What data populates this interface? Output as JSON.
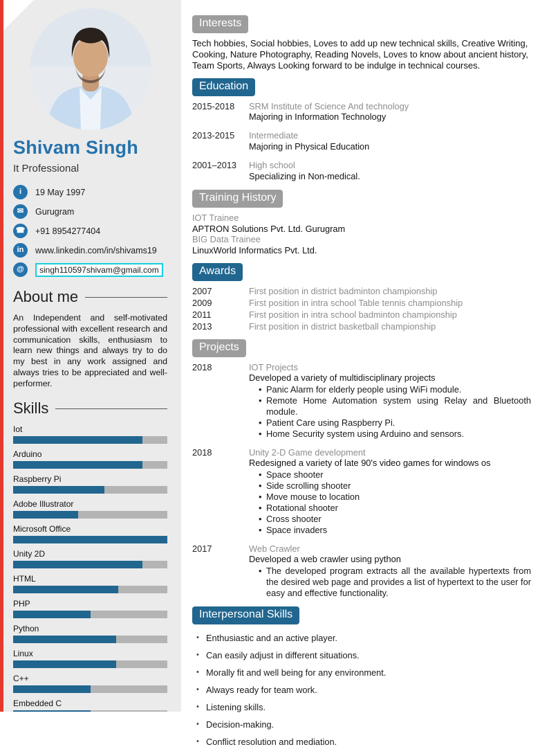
{
  "colors": {
    "accent_blue": "#2573ad",
    "badge_blue": "#21668f",
    "badge_gray": "#9d9d9d",
    "bar_fill": "#21668f",
    "bar_track": "#b4b4b4",
    "sidebar_bg": "#ebebeb",
    "red_strip": "#e6392e",
    "muted": "#8d8d8d",
    "email_border": "#19cfe0"
  },
  "sidebar": {
    "name": "Shivam Singh",
    "title": "It Professional",
    "contact": [
      {
        "icon": "info",
        "glyph": "i",
        "text": "19 May 1997",
        "link": false,
        "boxed": false
      },
      {
        "icon": "mail",
        "glyph": "✉",
        "text": "Gurugram",
        "link": false,
        "boxed": false
      },
      {
        "icon": "phone",
        "glyph": "☎",
        "text": "+91 8954277404",
        "link": false,
        "boxed": false
      },
      {
        "icon": "linkedin",
        "glyph": "in",
        "text": "www.linkedin.com/in/shivams19",
        "link": true,
        "boxed": false
      },
      {
        "icon": "at",
        "glyph": "@",
        "text": "singh110597shivam@gmail.com",
        "link": true,
        "boxed": true
      }
    ],
    "about": {
      "heading": "About me",
      "text": "An Independent and self-motivated professional with excellent research and communication skills, enthusiasm to learn new things and always try to do my best in any work assigned and always tries to be appreciated and well-performer."
    },
    "skills": {
      "heading": "Skills",
      "items": [
        {
          "label": "Iot",
          "level": 84
        },
        {
          "label": "Arduino",
          "level": 84
        },
        {
          "label": "Raspberry Pi",
          "level": 59
        },
        {
          "label": "Adobe Illustrator",
          "level": 42
        },
        {
          "label": "Microsoft Office",
          "level": 100
        },
        {
          "label": "Unity 2D",
          "level": 84
        },
        {
          "label": "HTML",
          "level": 68
        },
        {
          "label": "PHP",
          "level": 50
        },
        {
          "label": "Python",
          "level": 67
        },
        {
          "label": "Linux",
          "level": 67
        },
        {
          "label": "C++",
          "level": 50
        },
        {
          "label": "Embedded C",
          "level": 50
        }
      ]
    }
  },
  "main": {
    "interests": {
      "heading": "Interests",
      "text": "Tech hobbies, Social hobbies, Loves to add up new technical skills, Creative Writing, Cooking, Nature Photography, Reading Novels, Loves to know about ancient history, Team Sports, Always Looking forward to be indulge in technical courses."
    },
    "education": {
      "heading": "Education",
      "entries": [
        {
          "years": "2015-2018",
          "institution": "SRM Institute of Science And technology",
          "detail": "Majoring in Information Technology"
        },
        {
          "years": "2013-2015",
          "institution": "Intermediate",
          "detail": "Majoring in Physical Education"
        },
        {
          "years": "2001–2013",
          "institution": "High school",
          "detail": "Specializing in Non-medical."
        }
      ]
    },
    "training": {
      "heading": "Training History",
      "lines": [
        {
          "text": "IOT Trainee",
          "muted": true
        },
        {
          "text": "APTRON Solutions Pvt. Ltd. Gurugram",
          "muted": false
        },
        {
          "text": "BIG Data Trainee",
          "muted": true
        },
        {
          "text": "LinuxWorld Informatics Pvt. Ltd.",
          "muted": false
        }
      ]
    },
    "awards": {
      "heading": "Awards",
      "entries": [
        {
          "year": "2007",
          "text": "First position in district badminton championship"
        },
        {
          "year": "2009",
          "text": "First position in intra school Table tennis championship"
        },
        {
          "year": "2011",
          "text": "First position in intra school badminton championship"
        },
        {
          "year": "2013",
          "text": "First position in district basketball championship"
        }
      ]
    },
    "projects": {
      "heading": "Projects",
      "entries": [
        {
          "year": "2018",
          "title": "IOT Projects",
          "description": "Developed a variety of multidisciplinary projects",
          "bullets": [
            "Panic Alarm for elderly people using WiFi module.",
            "Remote Home Automation system using Relay and Bluetooth module.",
            "Patient Care using Raspberry Pi.",
            "Home Security system using Arduino and sensors."
          ]
        },
        {
          "year": "2018",
          "title": "Unity 2-D Game development",
          "description": "Redesigned a variety of late 90's video games for windows os",
          "bullets": [
            "Space shooter",
            "Side scrolling shooter",
            "Move mouse to location",
            "Rotational shooter",
            "Cross shooter",
            "Space invaders"
          ]
        },
        {
          "year": "2017",
          "title": "Web Crawler",
          "description": "Developed a web crawler using python",
          "bullets": [
            "The developed program extracts all the available hypertexts from the desired web page and provides a list of hypertext to the user for easy and effective functionality."
          ]
        }
      ]
    },
    "interpersonal": {
      "heading": "Interpersonal Skills",
      "bullets": [
        "Enthusiastic and an active player.",
        "Can easily adjust in different situations.",
        "Morally fit and well being for any environment.",
        "Always ready for team work.",
        "Listening skills.",
        "Decision-making.",
        "Conflict resolution and mediation."
      ]
    }
  }
}
